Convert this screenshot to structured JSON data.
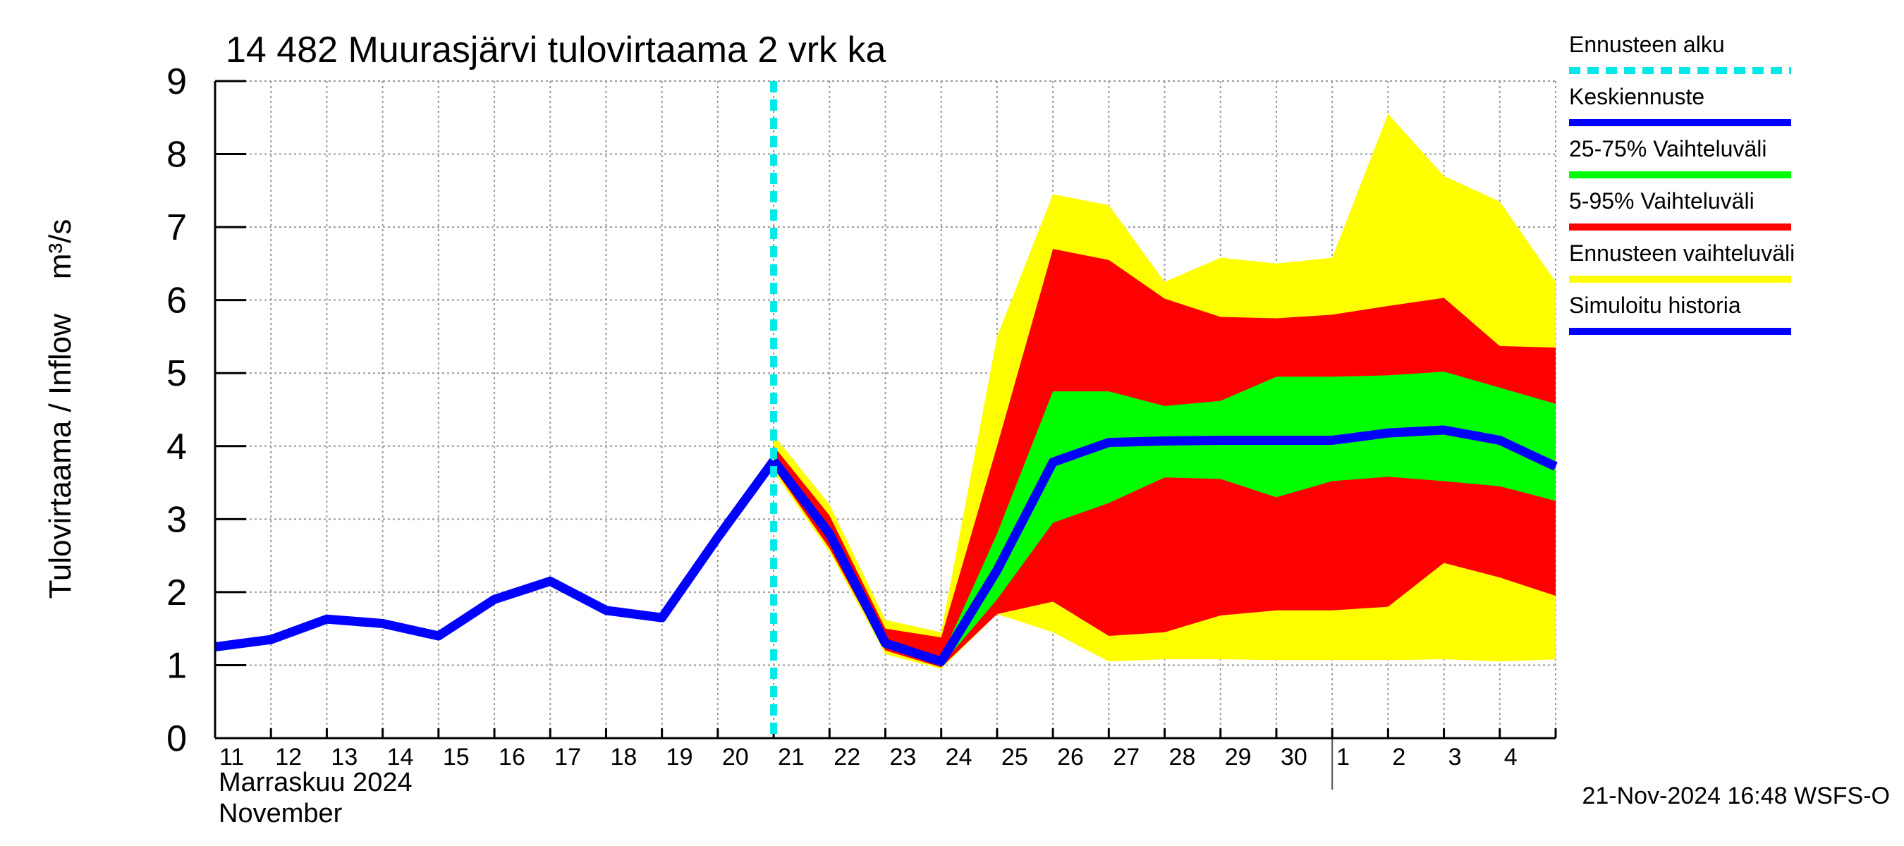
{
  "chart_data": {
    "type": "line",
    "title": "14 482 Muurasjärvi tulovirtaama 2 vrk ka",
    "y_label": "Tulovirtaama / Inflow    m³/s",
    "month_labels": [
      "Marraskuu 2024",
      "November"
    ],
    "footer": "21-Nov-2024 16:48 WSFS-O",
    "categories": [
      "11",
      "12",
      "13",
      "14",
      "15",
      "16",
      "17",
      "18",
      "19",
      "20",
      "21",
      "22",
      "23",
      "24",
      "25",
      "26",
      "27",
      "28",
      "29",
      "30",
      "1",
      "2",
      "3",
      "4",
      null
    ],
    "ylim": [
      0,
      9
    ],
    "yticks": [
      0,
      1,
      2,
      3,
      4,
      5,
      6,
      7,
      8,
      9
    ],
    "grid": true,
    "legend": "right",
    "series": [
      {
        "name": "Ennusteen alku",
        "type": "vline",
        "color": "#00e8e8",
        "x": 10
      },
      {
        "name": "Keskiennuste",
        "type": "line",
        "color": "#0000ff",
        "values": [
          null,
          null,
          null,
          null,
          null,
          null,
          null,
          null,
          null,
          null,
          3.8,
          2.8,
          1.3,
          1.05,
          2.3,
          3.78,
          4.05,
          4.07,
          4.08,
          4.08,
          4.08,
          4.18,
          4.22,
          4.08,
          3.72
        ]
      },
      {
        "name": "25-75% Vaihteluväli",
        "type": "band",
        "color": "#00ff00",
        "low": [
          null,
          null,
          null,
          null,
          null,
          null,
          null,
          null,
          null,
          null,
          3.78,
          2.75,
          1.25,
          1.0,
          1.9,
          2.95,
          3.22,
          3.57,
          3.55,
          3.3,
          3.52,
          3.58,
          3.52,
          3.45,
          3.25
        ],
        "high": [
          null,
          null,
          null,
          null,
          null,
          null,
          null,
          null,
          null,
          null,
          3.9,
          2.9,
          1.35,
          1.1,
          2.8,
          4.75,
          4.75,
          4.55,
          4.62,
          4.95,
          4.95,
          4.97,
          5.02,
          4.8,
          4.58
        ]
      },
      {
        "name": "5-95% Vaihteluväli",
        "type": "band",
        "color": "#ff0000",
        "low": [
          null,
          null,
          null,
          null,
          null,
          null,
          null,
          null,
          null,
          null,
          3.7,
          2.6,
          1.2,
          0.97,
          1.7,
          1.87,
          1.4,
          1.45,
          1.68,
          1.75,
          1.75,
          1.8,
          2.4,
          2.2,
          1.95
        ],
        "high": [
          null,
          null,
          null,
          null,
          null,
          null,
          null,
          null,
          null,
          null,
          4.0,
          3.05,
          1.5,
          1.38,
          4.0,
          6.7,
          6.55,
          6.02,
          5.77,
          5.75,
          5.8,
          5.92,
          6.03,
          5.37,
          5.35
        ]
      },
      {
        "name": "Ennusteen vaihteluväli",
        "type": "band",
        "color": "#ffff00",
        "low": [
          null,
          null,
          null,
          null,
          null,
          null,
          null,
          null,
          null,
          null,
          3.65,
          2.55,
          1.15,
          0.95,
          1.7,
          1.45,
          1.05,
          1.08,
          1.08,
          1.07,
          1.07,
          1.07,
          1.08,
          1.05,
          1.08
        ],
        "high": [
          null,
          null,
          null,
          null,
          null,
          null,
          null,
          null,
          null,
          null,
          4.15,
          3.2,
          1.62,
          1.45,
          5.5,
          7.45,
          7.3,
          6.25,
          6.58,
          6.5,
          6.58,
          8.55,
          7.7,
          7.35,
          6.25
        ]
      },
      {
        "name": "Simuloitu historia",
        "type": "line",
        "color": "#0000ff",
        "values": [
          1.25,
          1.35,
          1.63,
          1.57,
          1.4,
          1.9,
          2.15,
          1.75,
          1.65,
          2.75,
          3.8,
          null,
          null,
          null,
          null,
          null,
          null,
          null,
          null,
          null,
          null,
          null,
          null,
          null,
          null
        ]
      }
    ]
  }
}
